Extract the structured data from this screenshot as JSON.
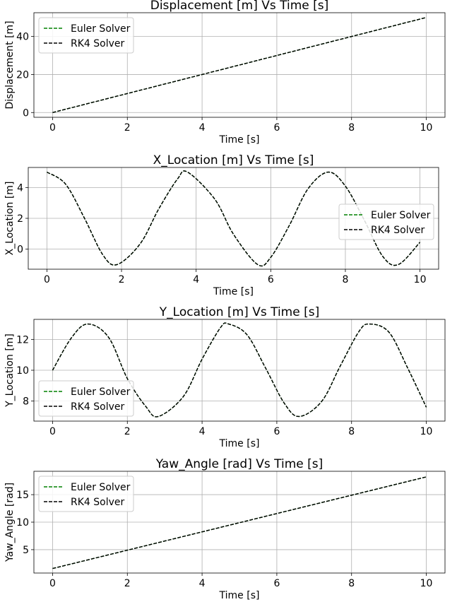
{
  "chart_data": [
    {
      "type": "line",
      "title": "Displacement [m] Vs Time [s]",
      "xlabel": "Time [s]",
      "ylabel": "Displacement [m]",
      "xlim": [
        -0.5,
        10.5
      ],
      "ylim": [
        -2.5,
        52.5
      ],
      "xticks": [
        0,
        2,
        4,
        6,
        8,
        10
      ],
      "yticks": [
        0,
        20,
        40
      ],
      "grid": true,
      "legend_position": "upper-left",
      "series": [
        {
          "name": "Euler Solver",
          "color": "#008000",
          "style": "dashed",
          "x": [
            0,
            10
          ],
          "y": [
            0,
            50
          ]
        },
        {
          "name": "RK4 Solver",
          "color": "#000000",
          "style": "dashed",
          "x": [
            0,
            10
          ],
          "y": [
            0,
            50
          ]
        }
      ]
    },
    {
      "type": "line",
      "title": "X_Location [m] Vs Time [s]",
      "xlabel": "Time [s]",
      "ylabel": "X_Location [m]",
      "xlim": [
        -0.5,
        10.5
      ],
      "ylim": [
        -1.3,
        5.3
      ],
      "xticks": [
        0,
        2,
        4,
        6,
        8,
        10
      ],
      "yticks": [
        0,
        2,
        4
      ],
      "grid": true,
      "legend_position": "center-right",
      "series": [
        {
          "name": "Euler Solver",
          "color": "#008000",
          "style": "dashed",
          "x": [
            0,
            0.5,
            1,
            1.5,
            1.88,
            2.5,
            3,
            3.5,
            3.77,
            4.5,
            5,
            5.65,
            6,
            6.5,
            7,
            7.54,
            8,
            8.5,
            9,
            9.42,
            10
          ],
          "y": [
            5.0,
            4.22,
            2.04,
            -0.37,
            -1.0,
            0.35,
            2.62,
            4.55,
            5.0,
            3.24,
            0.97,
            -1.0,
            -0.53,
            1.55,
            3.92,
            5.0,
            4.09,
            1.92,
            -0.46,
            -1.0,
            0.45
          ]
        },
        {
          "name": "RK4 Solver",
          "color": "#000000",
          "style": "dashed",
          "x": [
            0,
            0.5,
            1,
            1.5,
            1.88,
            2.5,
            3,
            3.5,
            3.77,
            4.5,
            5,
            5.65,
            6,
            6.5,
            7,
            7.54,
            8,
            8.5,
            9,
            9.42,
            10
          ],
          "y": [
            5.0,
            4.22,
            2.04,
            -0.37,
            -1.0,
            0.35,
            2.62,
            4.55,
            5.0,
            3.24,
            0.97,
            -1.0,
            -0.53,
            1.55,
            3.92,
            5.0,
            4.09,
            1.92,
            -0.46,
            -1.0,
            0.45
          ]
        }
      ]
    },
    {
      "type": "line",
      "title": "Y_Location [m] Vs Time [s]",
      "xlabel": "Time [s]",
      "ylabel": "Y_Location [m]",
      "xlim": [
        -0.5,
        10.5
      ],
      "ylim": [
        6.7,
        13.3
      ],
      "xticks": [
        0,
        2,
        4,
        6,
        8,
        10
      ],
      "yticks": [
        8,
        10,
        12
      ],
      "grid": true,
      "legend_position": "lower-left",
      "series": [
        {
          "name": "Euler Solver",
          "color": "#008000",
          "style": "dashed",
          "x": [
            0,
            0.5,
            0.94,
            1.5,
            2,
            2.5,
            2.83,
            3.5,
            4,
            4.5,
            4.71,
            5.2,
            5.7,
            6.2,
            6.6,
            7.2,
            7.7,
            8.2,
            8.48,
            9,
            9.5,
            10
          ],
          "y": [
            10.0,
            12.09,
            13.0,
            12.13,
            9.46,
            7.63,
            7.0,
            8.3,
            10.72,
            12.79,
            13.0,
            12.31,
            10.14,
            7.86,
            7.0,
            7.98,
            10.29,
            12.52,
            13.0,
            12.47,
            10.15,
            7.6
          ]
        },
        {
          "name": "RK4 Solver",
          "color": "#000000",
          "style": "dashed",
          "x": [
            0,
            0.5,
            0.94,
            1.5,
            2,
            2.5,
            2.83,
            3.5,
            4,
            4.5,
            4.71,
            5.2,
            5.7,
            6.2,
            6.6,
            7.2,
            7.7,
            8.2,
            8.48,
            9,
            9.5,
            10
          ],
          "y": [
            10.0,
            12.09,
            13.0,
            12.13,
            9.46,
            7.63,
            7.0,
            8.3,
            10.72,
            12.79,
            13.0,
            12.31,
            10.14,
            7.86,
            7.0,
            7.98,
            10.29,
            12.52,
            13.0,
            12.47,
            10.15,
            7.6
          ]
        }
      ]
    },
    {
      "type": "line",
      "title": "Yaw_Angle [rad] Vs Time [s]",
      "xlabel": "Time [s]",
      "ylabel": "Yaw_Angle [rad]",
      "xlim": [
        -0.5,
        10.5
      ],
      "ylim": [
        0.75,
        19.25
      ],
      "xticks": [
        0,
        2,
        4,
        6,
        8,
        10
      ],
      "yticks": [
        5,
        10,
        15
      ],
      "grid": true,
      "legend_position": "upper-left",
      "series": [
        {
          "name": "Euler Solver",
          "color": "#008000",
          "style": "dashed",
          "x": [
            0,
            10
          ],
          "y": [
            1.57,
            18.23
          ]
        },
        {
          "name": "RK4 Solver",
          "color": "#000000",
          "style": "dashed",
          "x": [
            0,
            10
          ],
          "y": [
            1.57,
            18.23
          ]
        }
      ]
    }
  ]
}
